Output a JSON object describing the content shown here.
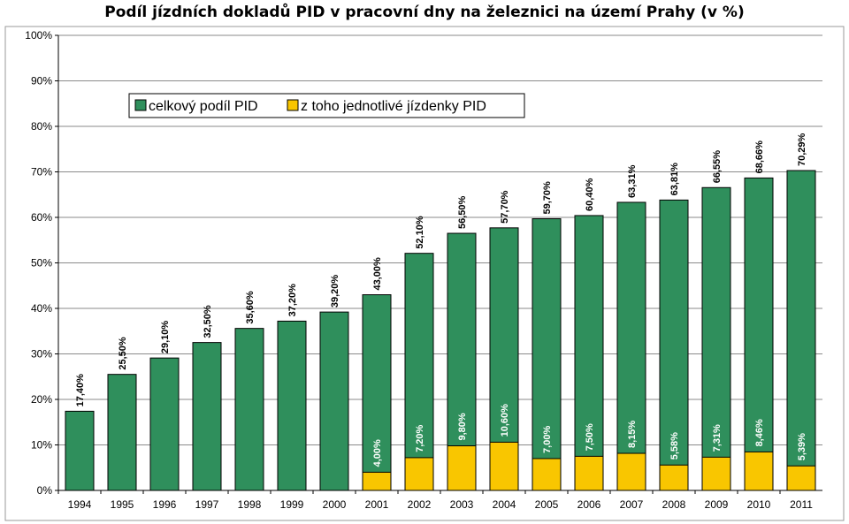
{
  "chart_data": {
    "type": "bar",
    "title": "Podíl jízdních dokladů PID v pracovní dny na železnici na území Prahy (v %)",
    "xlabel": "",
    "ylabel": "",
    "ylim": [
      0,
      100
    ],
    "y_ticks": [
      "0%",
      "10%",
      "20%",
      "30%",
      "40%",
      "50%",
      "60%",
      "70%",
      "80%",
      "90%",
      "100%"
    ],
    "grid": true,
    "legend_position": "top-left",
    "categories": [
      "1994",
      "1995",
      "1996",
      "1997",
      "1998",
      "1999",
      "2000",
      "2001",
      "2002",
      "2003",
      "2004",
      "2005",
      "2006",
      "2007",
      "2008",
      "2009",
      "2010",
      "2011"
    ],
    "series": [
      {
        "name": "celkový podíl PID",
        "color": "#2f8f5c",
        "values": [
          17.4,
          25.5,
          29.1,
          32.5,
          35.6,
          37.2,
          39.2,
          43.0,
          52.1,
          56.5,
          57.7,
          59.7,
          60.4,
          63.31,
          63.81,
          66.55,
          68.66,
          70.29
        ],
        "labels": [
          "17,40%",
          "25,50%",
          "29,10%",
          "32,50%",
          "35,60%",
          "37,20%",
          "39,20%",
          "43,00%",
          "52,10%",
          "56,50%",
          "57,70%",
          "59,70%",
          "60,40%",
          "63,31%",
          "63,81%",
          "66,55%",
          "68,66%",
          "70,29%"
        ]
      },
      {
        "name": "z toho jednotlivé jízdenky PID",
        "color": "#f9c600",
        "values": [
          null,
          null,
          null,
          null,
          null,
          null,
          null,
          4.0,
          7.2,
          9.8,
          10.6,
          7.0,
          7.5,
          8.15,
          5.58,
          7.31,
          8.46,
          5.39
        ],
        "labels": [
          null,
          null,
          null,
          null,
          null,
          null,
          null,
          "4,00%",
          "7,20%",
          "9,80%",
          "10,60%",
          "7,00%",
          "7,50%",
          "8,15%",
          "5,58%",
          "7,31%",
          "8,46%",
          "5,39%"
        ]
      }
    ]
  }
}
